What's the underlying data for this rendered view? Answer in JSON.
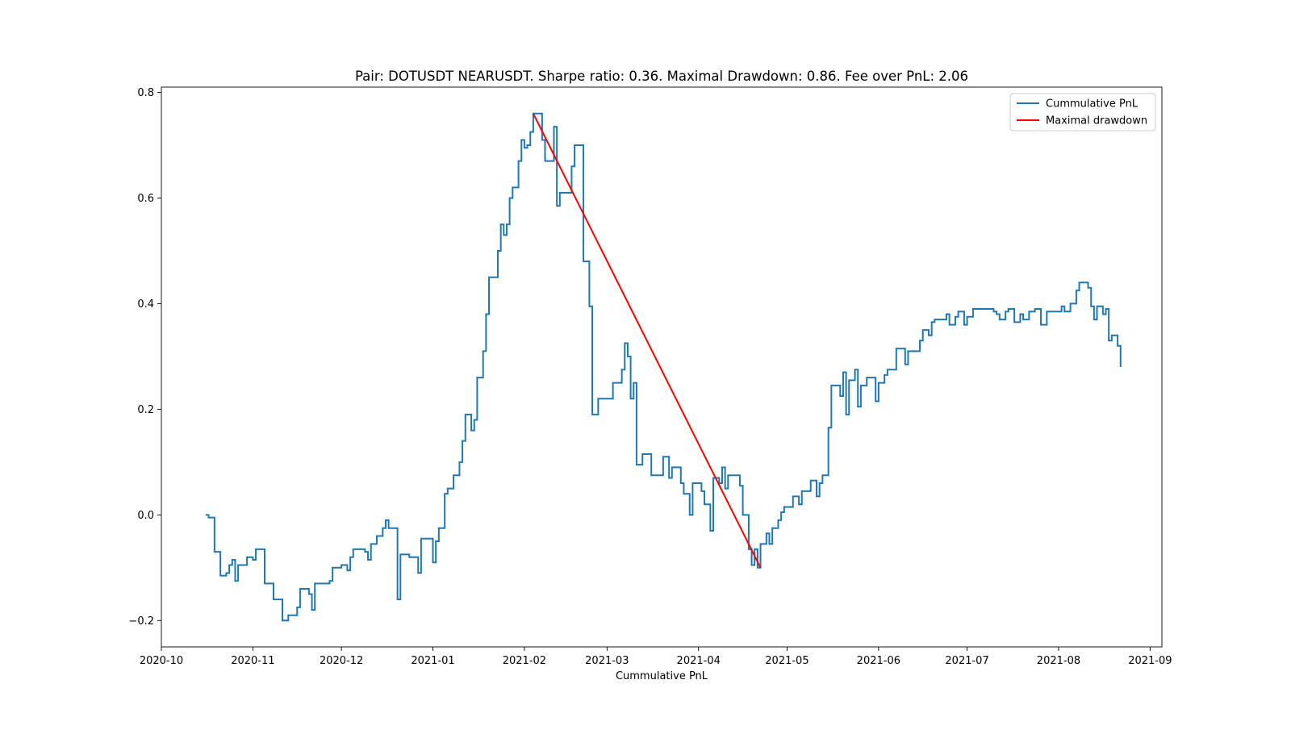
{
  "chart_data": {
    "type": "line",
    "title": "Pair: DOTUSDT NEARUSDT. Sharpe ratio: 0.36. Maximal Drawdown: 0.86. Fee over PnL: 2.06",
    "xlabel": "Cummulative PnL",
    "ylabel": "",
    "x_axis_type": "date",
    "xlim": [
      "2020-10-01",
      "2021-09-05"
    ],
    "ylim": [
      -0.25,
      0.81
    ],
    "x_ticks": [
      "2020-10",
      "2020-11",
      "2020-12",
      "2021-01",
      "2021-02",
      "2021-03",
      "2021-04",
      "2021-05",
      "2021-06",
      "2021-07",
      "2021-08",
      "2021-09"
    ],
    "y_ticks": [
      "−0.2",
      "0.0",
      "0.2",
      "0.4",
      "0.6",
      "0.8"
    ],
    "grid": false,
    "legend_position": "top-right",
    "series": [
      {
        "name": "Cummulative PnL",
        "color": "#1f77b4",
        "style": "step",
        "points": [
          [
            "2020-10-16",
            0.0
          ],
          [
            "2020-10-17",
            -0.005
          ],
          [
            "2020-10-19",
            -0.07
          ],
          [
            "2020-10-21",
            -0.115
          ],
          [
            "2020-10-23",
            -0.11
          ],
          [
            "2020-10-24",
            -0.095
          ],
          [
            "2020-10-25",
            -0.085
          ],
          [
            "2020-10-26",
            -0.125
          ],
          [
            "2020-10-27",
            -0.095
          ],
          [
            "2020-10-30",
            -0.08
          ],
          [
            "2020-11-01",
            -0.085
          ],
          [
            "2020-11-02",
            -0.065
          ],
          [
            "2020-11-05",
            -0.13
          ],
          [
            "2020-11-08",
            -0.16
          ],
          [
            "2020-11-11",
            -0.2
          ],
          [
            "2020-11-13",
            -0.19
          ],
          [
            "2020-11-16",
            -0.175
          ],
          [
            "2020-11-17",
            -0.14
          ],
          [
            "2020-11-20",
            -0.15
          ],
          [
            "2020-11-21",
            -0.18
          ],
          [
            "2020-11-22",
            -0.13
          ],
          [
            "2020-11-27",
            -0.125
          ],
          [
            "2020-11-28",
            -0.1
          ],
          [
            "2020-12-01",
            -0.095
          ],
          [
            "2020-12-03",
            -0.105
          ],
          [
            "2020-12-04",
            -0.08
          ],
          [
            "2020-12-05",
            -0.065
          ],
          [
            "2020-12-09",
            -0.07
          ],
          [
            "2020-12-10",
            -0.085
          ],
          [
            "2020-12-11",
            -0.055
          ],
          [
            "2020-12-13",
            -0.04
          ],
          [
            "2020-12-15",
            -0.025
          ],
          [
            "2020-12-16",
            -0.01
          ],
          [
            "2020-12-17",
            -0.025
          ],
          [
            "2020-12-20",
            -0.16
          ],
          [
            "2020-12-21",
            -0.075
          ],
          [
            "2020-12-24",
            -0.08
          ],
          [
            "2020-12-27",
            -0.11
          ],
          [
            "2020-12-28",
            -0.045
          ],
          [
            "2021-01-01",
            -0.09
          ],
          [
            "2021-01-02",
            -0.05
          ],
          [
            "2021-01-03",
            -0.025
          ],
          [
            "2021-01-05",
            0.04
          ],
          [
            "2021-01-06",
            0.05
          ],
          [
            "2021-01-08",
            0.075
          ],
          [
            "2021-01-10",
            0.1
          ],
          [
            "2021-01-11",
            0.14
          ],
          [
            "2021-01-12",
            0.19
          ],
          [
            "2021-01-14",
            0.16
          ],
          [
            "2021-01-15",
            0.18
          ],
          [
            "2021-01-16",
            0.26
          ],
          [
            "2021-01-18",
            0.31
          ],
          [
            "2021-01-19",
            0.38
          ],
          [
            "2021-01-20",
            0.45
          ],
          [
            "2021-01-23",
            0.5
          ],
          [
            "2021-01-24",
            0.55
          ],
          [
            "2021-01-25",
            0.53
          ],
          [
            "2021-01-26",
            0.55
          ],
          [
            "2021-01-27",
            0.6
          ],
          [
            "2021-01-28",
            0.62
          ],
          [
            "2021-01-30",
            0.67
          ],
          [
            "2021-01-31",
            0.71
          ],
          [
            "2021-02-01",
            0.695
          ],
          [
            "2021-02-02",
            0.7
          ],
          [
            "2021-02-03",
            0.725
          ],
          [
            "2021-02-04",
            0.76
          ],
          [
            "2021-02-07",
            0.71
          ],
          [
            "2021-02-08",
            0.67
          ],
          [
            "2021-02-11",
            0.735
          ],
          [
            "2021-02-12",
            0.585
          ],
          [
            "2021-02-13",
            0.61
          ],
          [
            "2021-02-17",
            0.66
          ],
          [
            "2021-02-18",
            0.7
          ],
          [
            "2021-02-21",
            0.48
          ],
          [
            "2021-02-23",
            0.395
          ],
          [
            "2021-02-24",
            0.19
          ],
          [
            "2021-02-26",
            0.22
          ],
          [
            "2021-03-03",
            0.25
          ],
          [
            "2021-03-06",
            0.275
          ],
          [
            "2021-03-07",
            0.325
          ],
          [
            "2021-03-08",
            0.3
          ],
          [
            "2021-03-09",
            0.22
          ],
          [
            "2021-03-10",
            0.25
          ],
          [
            "2021-03-11",
            0.095
          ],
          [
            "2021-03-13",
            0.115
          ],
          [
            "2021-03-16",
            0.075
          ],
          [
            "2021-03-20",
            0.11
          ],
          [
            "2021-03-22",
            0.07
          ],
          [
            "2021-03-23",
            0.09
          ],
          [
            "2021-03-26",
            0.06
          ],
          [
            "2021-03-27",
            0.04
          ],
          [
            "2021-03-29",
            0.0
          ],
          [
            "2021-03-30",
            0.06
          ],
          [
            "2021-04-02",
            0.045
          ],
          [
            "2021-04-03",
            0.02
          ],
          [
            "2021-04-05",
            -0.03
          ],
          [
            "2021-04-06",
            0.07
          ],
          [
            "2021-04-08",
            0.06
          ],
          [
            "2021-04-09",
            0.09
          ],
          [
            "2021-04-10",
            0.05
          ],
          [
            "2021-04-11",
            0.075
          ],
          [
            "2021-04-15",
            0.055
          ],
          [
            "2021-04-16",
            0.0
          ],
          [
            "2021-04-18",
            -0.065
          ],
          [
            "2021-04-19",
            -0.095
          ],
          [
            "2021-04-20",
            -0.065
          ],
          [
            "2021-04-21",
            -0.1
          ],
          [
            "2021-04-22",
            -0.055
          ],
          [
            "2021-04-24",
            -0.035
          ],
          [
            "2021-04-25",
            -0.055
          ],
          [
            "2021-04-26",
            -0.025
          ],
          [
            "2021-04-28",
            -0.01
          ],
          [
            "2021-04-29",
            0.005
          ],
          [
            "2021-04-30",
            0.015
          ],
          [
            "2021-05-03",
            0.035
          ],
          [
            "2021-05-05",
            0.02
          ],
          [
            "2021-05-06",
            0.045
          ],
          [
            "2021-05-09",
            0.065
          ],
          [
            "2021-05-11",
            0.035
          ],
          [
            "2021-05-12",
            0.06
          ],
          [
            "2021-05-13",
            0.075
          ],
          [
            "2021-05-15",
            0.165
          ],
          [
            "2021-05-16",
            0.245
          ],
          [
            "2021-05-19",
            0.225
          ],
          [
            "2021-05-20",
            0.27
          ],
          [
            "2021-05-21",
            0.19
          ],
          [
            "2021-05-22",
            0.255
          ],
          [
            "2021-05-24",
            0.275
          ],
          [
            "2021-05-25",
            0.205
          ],
          [
            "2021-05-26",
            0.245
          ],
          [
            "2021-05-28",
            0.26
          ],
          [
            "2021-05-31",
            0.215
          ],
          [
            "2021-06-01",
            0.25
          ],
          [
            "2021-06-03",
            0.265
          ],
          [
            "2021-06-04",
            0.275
          ],
          [
            "2021-06-07",
            0.315
          ],
          [
            "2021-06-10",
            0.285
          ],
          [
            "2021-06-11",
            0.31
          ],
          [
            "2021-06-15",
            0.33
          ],
          [
            "2021-06-16",
            0.35
          ],
          [
            "2021-06-18",
            0.34
          ],
          [
            "2021-06-19",
            0.365
          ],
          [
            "2021-06-20",
            0.37
          ],
          [
            "2021-06-24",
            0.38
          ],
          [
            "2021-06-25",
            0.36
          ],
          [
            "2021-06-27",
            0.375
          ],
          [
            "2021-06-28",
            0.385
          ],
          [
            "2021-06-30",
            0.36
          ],
          [
            "2021-07-01",
            0.375
          ],
          [
            "2021-07-03",
            0.39
          ],
          [
            "2021-07-10",
            0.385
          ],
          [
            "2021-07-11",
            0.38
          ],
          [
            "2021-07-12",
            0.37
          ],
          [
            "2021-07-14",
            0.385
          ],
          [
            "2021-07-15",
            0.39
          ],
          [
            "2021-07-17",
            0.365
          ],
          [
            "2021-07-19",
            0.38
          ],
          [
            "2021-07-20",
            0.37
          ],
          [
            "2021-07-22",
            0.385
          ],
          [
            "2021-07-24",
            0.39
          ],
          [
            "2021-07-26",
            0.36
          ],
          [
            "2021-07-28",
            0.385
          ],
          [
            "2021-08-02",
            0.395
          ],
          [
            "2021-08-03",
            0.385
          ],
          [
            "2021-08-05",
            0.4
          ],
          [
            "2021-08-07",
            0.425
          ],
          [
            "2021-08-08",
            0.44
          ],
          [
            "2021-08-11",
            0.43
          ],
          [
            "2021-08-12",
            0.395
          ],
          [
            "2021-08-13",
            0.37
          ],
          [
            "2021-08-14",
            0.395
          ],
          [
            "2021-08-16",
            0.38
          ],
          [
            "2021-08-17",
            0.39
          ],
          [
            "2021-08-18",
            0.33
          ],
          [
            "2021-08-19",
            0.34
          ],
          [
            "2021-08-21",
            0.32
          ],
          [
            "2021-08-22",
            0.28
          ]
        ]
      },
      {
        "name": "Maximal drawdown",
        "color": "#ff0000",
        "style": "line",
        "points": [
          [
            "2021-02-04",
            0.76
          ],
          [
            "2021-04-22",
            -0.1
          ]
        ]
      }
    ]
  }
}
